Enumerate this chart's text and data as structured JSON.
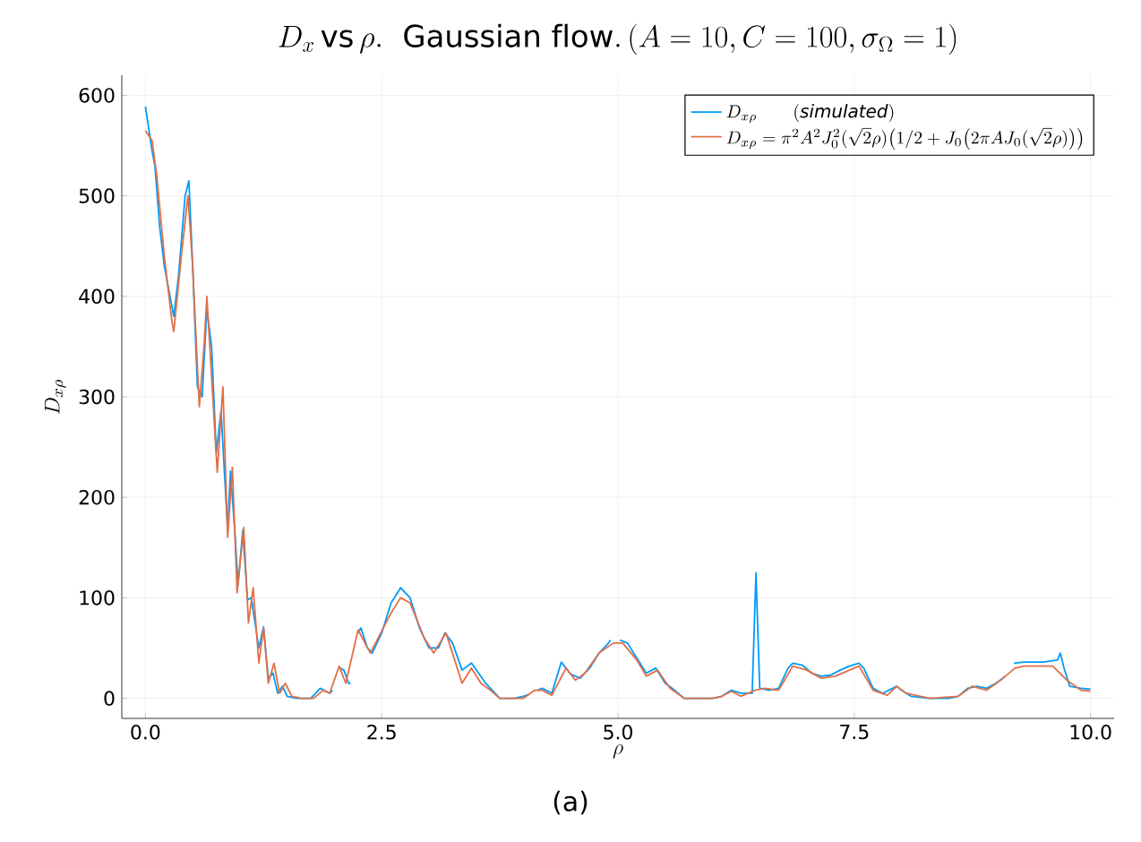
{
  "chart_data": {
    "type": "line",
    "title": "D_x\\,\\mathrm{vs}\\,\\rho.\\ \\ \\mathrm{Gaussian\\ flow.}\\,(A=10, C=100, \\sigma_\\Omega=1)",
    "xlabel": "\\rho",
    "ylabel": "D_{x\\rho}",
    "annotations": [
      "(a)"
    ],
    "xlim": [
      -0.25,
      10.25
    ],
    "ylim": [
      -20,
      620
    ],
    "xticks": [
      {
        "value": 0,
        "label": "0.0"
      },
      {
        "value": 2.5,
        "label": "2.5"
      },
      {
        "value": 5,
        "label": "5.0"
      },
      {
        "value": 7.5,
        "label": "7.5"
      },
      {
        "value": 10,
        "label": "10.0"
      }
    ],
    "yticks": [
      0,
      100,
      200,
      300,
      400,
      500,
      600
    ],
    "grid": true,
    "legend": "top right",
    "marker": "none",
    "line_style": "solid",
    "series": [
      {
        "name": "D_{x\\rho}\\qquad (\\mathit{simulated})",
        "color": "#009afa",
        "x": [
          0.0,
          0.07,
          0.1,
          0.15,
          0.2,
          0.28,
          0.3,
          0.35,
          0.42,
          0.46,
          0.5,
          0.55,
          0.6,
          0.65,
          0.7,
          0.75,
          0.8,
          0.87,
          0.9,
          0.95,
          0.98,
          1.03,
          1.08,
          1.12,
          1.2,
          1.25,
          1.3,
          1.35,
          1.4,
          1.45,
          1.5,
          1.6,
          1.75,
          1.85,
          1.95,
          1.98,
          2.02,
          2.06,
          2.1,
          2.15,
          2.17,
          2.21,
          2.25,
          2.28,
          2.35,
          2.4,
          2.5,
          2.6,
          2.7,
          2.8,
          2.9,
          3.0,
          3.1,
          3.17,
          3.25,
          3.35,
          3.45,
          3.6,
          3.65,
          3.75,
          3.9,
          4.0,
          4.06,
          4.105,
          4.15,
          4.2,
          4.3,
          4.4,
          4.5,
          4.6,
          4.7,
          4.8,
          4.9,
          4.92,
          4.97,
          5.02,
          5.1,
          5.2,
          5.3,
          5.4,
          5.5,
          5.6,
          5.7,
          5.9,
          6.0,
          6.1,
          6.2,
          6.3,
          6.42,
          6.46,
          6.5,
          6.6,
          6.7,
          6.8,
          6.85,
          6.95,
          7.05,
          7.15,
          7.25,
          7.35,
          7.45,
          7.55,
          7.6,
          7.7,
          7.8,
          7.95,
          8.0,
          8.1,
          8.3,
          8.5,
          8.6,
          8.7,
          8.8,
          8.9,
          9.0,
          9.1,
          9.145,
          9.19,
          9.3,
          9.5,
          9.65,
          9.68,
          9.72,
          9.78,
          9.9,
          10.0
        ],
        "values": [
          589,
          545,
          530,
          470,
          430,
          390,
          380,
          420,
          500,
          515,
          430,
          310,
          300,
          387,
          350,
          244,
          286,
          167,
          226,
          160,
          113,
          167,
          98,
          100,
          50,
          71,
          20,
          25,
          5,
          12,
          2,
          0,
          0,
          10,
          5,
          8,
          null,
          30,
          28,
          15,
          15,
          null,
          65,
          70,
          50,
          45,
          65,
          95,
          110,
          100,
          70,
          50,
          50,
          65,
          55,
          28,
          35,
          15,
          10,
          0,
          0,
          2,
          4,
          null,
          8,
          10,
          5,
          36,
          24,
          20,
          30,
          45,
          55,
          58,
          null,
          58,
          55,
          40,
          25,
          30,
          15,
          8,
          0,
          0,
          0,
          2,
          8,
          5,
          5,
          125,
          10,
          8,
          10,
          30,
          35,
          33,
          25,
          22,
          23,
          28,
          32,
          35,
          30,
          10,
          5,
          12,
          8,
          2,
          0,
          0,
          2,
          10,
          12,
          10,
          15,
          22,
          null,
          35,
          36,
          36,
          38,
          45,
          30,
          12,
          10,
          9
        ]
      },
      {
        "name": "D_{x\\rho} = \\pi^2 A^2 J_0^2(\\sqrt{2}\\rho)\\big(1/2 + J_0\\big(2\\pi A J_0(\\sqrt{2}\\rho)\\big)\\big)",
        "color": "#e26f46",
        "x": [
          0.0,
          0.07,
          0.12,
          0.2,
          0.28,
          0.3,
          0.38,
          0.45,
          0.5,
          0.57,
          0.62,
          0.65,
          0.7,
          0.76,
          0.82,
          0.87,
          0.92,
          0.97,
          1.04,
          1.09,
          1.14,
          1.2,
          1.25,
          1.3,
          1.36,
          1.42,
          1.48,
          1.55,
          1.65,
          1.78,
          1.88,
          1.95,
          2.05,
          2.12,
          2.25,
          2.38,
          2.6,
          2.7,
          2.8,
          2.95,
          3.05,
          3.18,
          3.3,
          3.35,
          3.45,
          3.55,
          3.65,
          3.75,
          4.0,
          4.12,
          4.2,
          4.3,
          4.45,
          4.55,
          4.65,
          4.8,
          4.95,
          5.05,
          5.2,
          5.3,
          5.42,
          5.55,
          5.7,
          6.0,
          6.1,
          6.2,
          6.3,
          6.45,
          6.55,
          6.7,
          6.85,
          7.0,
          7.15,
          7.3,
          7.5,
          7.55,
          7.7,
          7.85,
          7.95,
          8.05,
          8.3,
          8.6,
          8.75,
          8.9,
          9.05,
          9.2,
          9.3,
          9.6,
          9.75,
          9.9,
          10.0
        ],
        "values": [
          565,
          555,
          520,
          440,
          375,
          365,
          440,
          500,
          430,
          290,
          350,
          400,
          320,
          225,
          310,
          160,
          230,
          105,
          170,
          75,
          110,
          35,
          70,
          15,
          35,
          5,
          15,
          2,
          0,
          0,
          8,
          5,
          32,
          15,
          68,
          45,
          85,
          100,
          95,
          60,
          45,
          65,
          30,
          15,
          30,
          15,
          8,
          0,
          0,
          8,
          8,
          3,
          30,
          18,
          25,
          45,
          55,
          55,
          38,
          22,
          28,
          10,
          0,
          0,
          2,
          7,
          2,
          8,
          10,
          8,
          32,
          28,
          20,
          22,
          30,
          32,
          8,
          3,
          12,
          5,
          0,
          2,
          12,
          8,
          18,
          30,
          32,
          32,
          18,
          8,
          7
        ]
      }
    ]
  }
}
